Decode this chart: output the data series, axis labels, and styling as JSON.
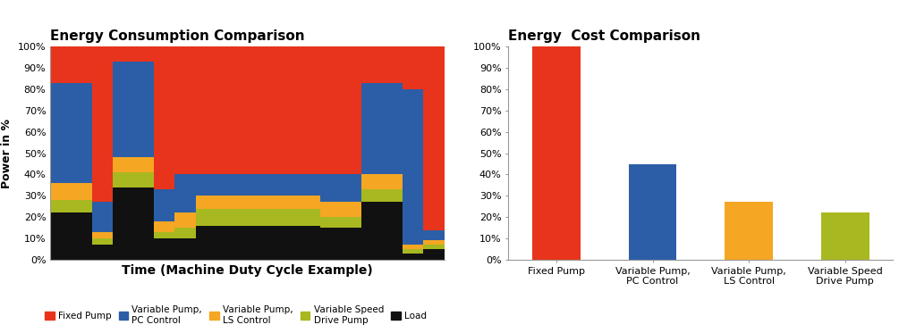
{
  "left_title": "Energy Consumption Comparison",
  "right_title": "Energy  Cost Comparison",
  "left_xlabel": "Time (Machine Duty Cycle Example)",
  "left_ylabel": "Power in %",
  "colors": {
    "fixed_pump": "#E8341C",
    "variable_pc": "#2B5EA7",
    "variable_ls": "#F5A623",
    "variable_vsd": "#A8B820",
    "load": "#111111"
  },
  "legend_labels": [
    "Fixed Pump",
    "Variable Pump,\nPC Control",
    "Variable Pump,\nLS Control",
    "Variable Speed\nDrive Pump",
    "Load"
  ],
  "stacked_segments": [
    {
      "load": 22,
      "variable_vsd": 6,
      "variable_ls": 8,
      "variable_pc": 47,
      "fixed_pump": 17
    },
    {
      "load": 7,
      "variable_vsd": 3,
      "variable_ls": 3,
      "variable_pc": 14,
      "fixed_pump": 73
    },
    {
      "load": 34,
      "variable_vsd": 7,
      "variable_ls": 7,
      "variable_pc": 45,
      "fixed_pump": 7
    },
    {
      "load": 10,
      "variable_vsd": 3,
      "variable_ls": 5,
      "variable_pc": 15,
      "fixed_pump": 67
    },
    {
      "load": 10,
      "variable_vsd": 5,
      "variable_ls": 7,
      "variable_pc": 18,
      "fixed_pump": 60
    },
    {
      "load": 16,
      "variable_vsd": 8,
      "variable_ls": 6,
      "variable_pc": 10,
      "fixed_pump": 60
    },
    {
      "load": 16,
      "variable_vsd": 8,
      "variable_ls": 6,
      "variable_pc": 10,
      "fixed_pump": 60
    },
    {
      "load": 16,
      "variable_vsd": 8,
      "variable_ls": 6,
      "variable_pc": 10,
      "fixed_pump": 60
    },
    {
      "load": 15,
      "variable_vsd": 5,
      "variable_ls": 7,
      "variable_pc": 13,
      "fixed_pump": 60
    },
    {
      "load": 27,
      "variable_vsd": 6,
      "variable_ls": 7,
      "variable_pc": 43,
      "fixed_pump": 17
    },
    {
      "load": 3,
      "variable_vsd": 2,
      "variable_ls": 2,
      "variable_pc": 73,
      "fixed_pump": 20
    },
    {
      "load": 5,
      "variable_vsd": 2,
      "variable_ls": 2,
      "variable_pc": 5,
      "fixed_pump": 86
    }
  ],
  "segment_widths": [
    2,
    1,
    2,
    1,
    1,
    4,
    1,
    1,
    2,
    2,
    1,
    1
  ],
  "bar_categories": [
    "Fixed Pump",
    "Variable Pump,\nPC Control",
    "Variable Pump,\nLS Control",
    "Variable Speed\nDrive Pump"
  ],
  "bar_values": [
    100,
    45,
    27,
    22
  ],
  "bar_colors": [
    "#E8341C",
    "#2B5EA7",
    "#F5A623",
    "#A8B820"
  ],
  "right_yticks": [
    0,
    10,
    20,
    30,
    40,
    50,
    60,
    70,
    80,
    90,
    100
  ],
  "background_color": "#FFFFFF"
}
